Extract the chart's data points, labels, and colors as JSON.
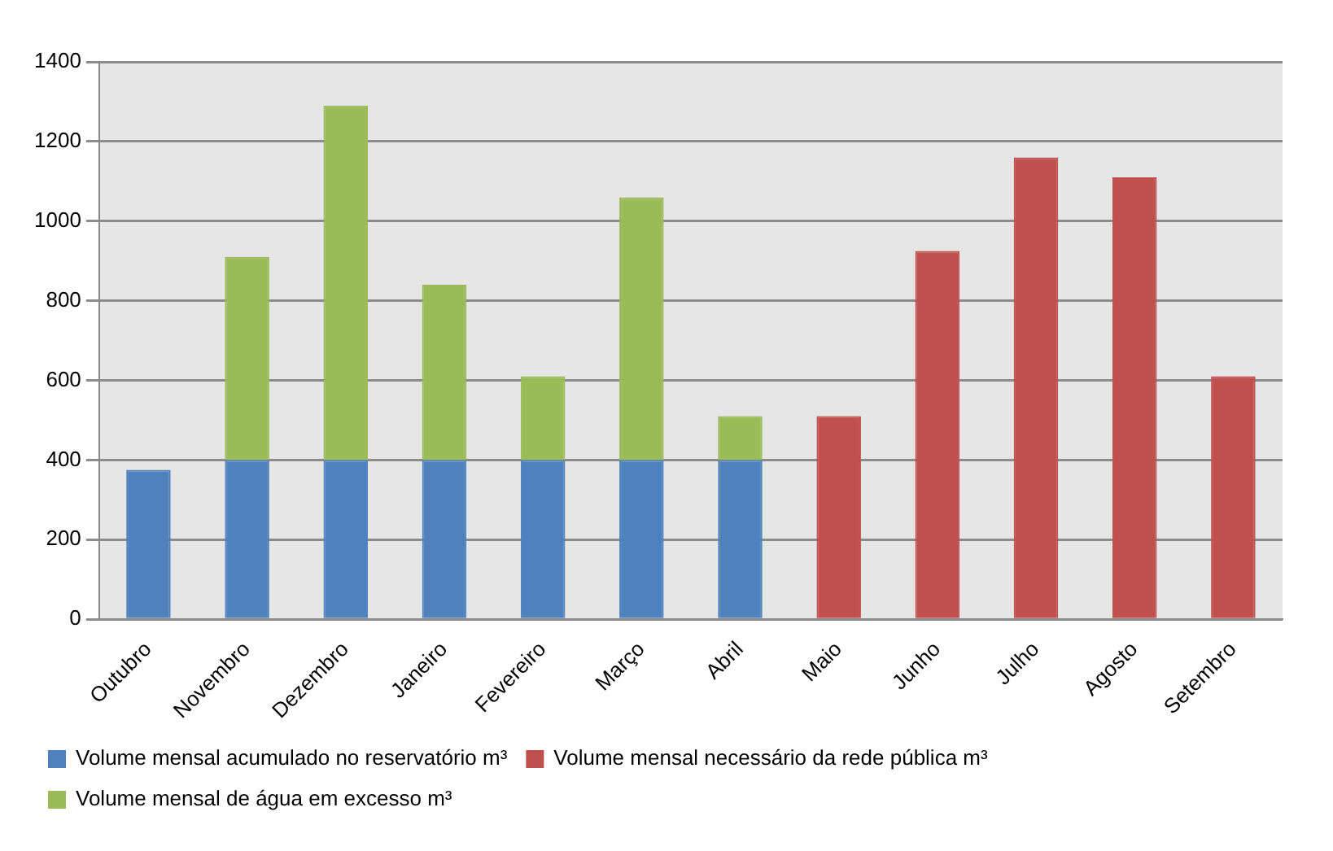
{
  "chart_data": {
    "type": "bar",
    "stacked": true,
    "categories": [
      "Outubro",
      "Novembro",
      "Dezembro",
      "Janeiro",
      "Fevereiro",
      "Março",
      "Abril",
      "Maio",
      "Junho",
      "Julho",
      "Agosto",
      "Setembro"
    ],
    "series": [
      {
        "name": "Volume mensal acumulado no reservatório m³",
        "color": "#4f81bd",
        "values": [
          375,
          400,
          400,
          400,
          400,
          400,
          400,
          null,
          null,
          null,
          null,
          null
        ]
      },
      {
        "name": "Volume mensal necessário da rede pública m³",
        "color": "#c0504d",
        "values": [
          null,
          null,
          null,
          null,
          null,
          null,
          null,
          510,
          925,
          1160,
          1110,
          610
        ]
      },
      {
        "name": "Volume mensal de água em excesso m³",
        "color": "#9bbb59",
        "values": [
          null,
          510,
          890,
          440,
          210,
          660,
          110,
          null,
          null,
          null,
          null,
          null
        ]
      }
    ],
    "ylim": [
      0,
      1400
    ],
    "yticks": [
      0,
      200,
      400,
      600,
      800,
      1000,
      1200,
      1400
    ],
    "grid": "y",
    "legend": "bottom"
  }
}
